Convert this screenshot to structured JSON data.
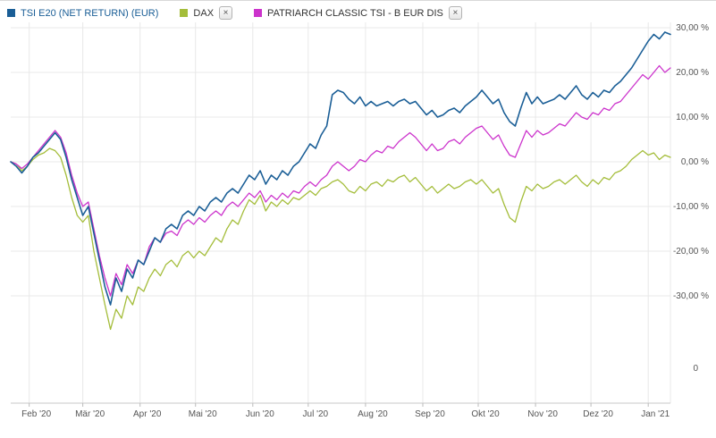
{
  "legend": {
    "items": [
      {
        "label": "TSI E20 (NET RETURN) (EUR)",
        "color": "#1a5e96",
        "text_color": "#1a5e96",
        "closable": false
      },
      {
        "label": "DAX",
        "color": "#a4bd3a",
        "text_color": "#333333",
        "closable": true
      },
      {
        "label": "PATRIARCH CLASSIC TSI - B EUR DIS",
        "color": "#cc33cc",
        "text_color": "#333333",
        "closable": true
      }
    ],
    "close_label": "×"
  },
  "chart_data": {
    "type": "line",
    "title": "",
    "grid": true,
    "legend_position": "top-left",
    "ylim": [
      -40,
      32
    ],
    "point_interval_days": 3,
    "x_total_days": 357,
    "y_ticks": [
      {
        "label": "30,00 %",
        "value": 30,
        "color": "#cc2a2a"
      },
      {
        "label": "20,00 %",
        "value": 20,
        "color": "#555555"
      },
      {
        "label": "10,00 %",
        "value": 10,
        "color": "#555555"
      },
      {
        "label": "0,00 %",
        "value": 0,
        "color": "#555555"
      },
      {
        "label": "-10,00 %",
        "value": -10,
        "color": "#555555"
      },
      {
        "label": "-20,00 %",
        "value": -20,
        "color": "#555555"
      },
      {
        "label": "-30,00 %",
        "value": -30,
        "color": "#555555"
      }
    ],
    "y_axis_lower_label": "0",
    "x_ticks": [
      {
        "label": "Feb '20",
        "day": 10
      },
      {
        "label": "Mär '20",
        "day": 39
      },
      {
        "label": "Apr '20",
        "day": 70
      },
      {
        "label": "Mai '20",
        "day": 100
      },
      {
        "label": "Jun '20",
        "day": 131
      },
      {
        "label": "Jul '20",
        "day": 161
      },
      {
        "label": "Aug '20",
        "day": 192
      },
      {
        "label": "Sep '20",
        "day": 223
      },
      {
        "label": "Okt '20",
        "day": 253
      },
      {
        "label": "Nov '20",
        "day": 284
      },
      {
        "label": "Dez '20",
        "day": 314
      },
      {
        "label": "Jan '21",
        "day": 345
      }
    ],
    "series": [
      {
        "name": "TSI E20 (NET RETURN) (EUR)",
        "color": "#1a5e96",
        "stroke_width": 1.6,
        "values": [
          0,
          -1,
          -2.5,
          -1,
          1,
          2,
          3.5,
          5,
          6.5,
          5,
          1,
          -4,
          -8,
          -12,
          -10,
          -16,
          -22,
          -28,
          -32,
          -26,
          -29,
          -24,
          -26,
          -22,
          -23,
          -20,
          -17,
          -18,
          -15,
          -14,
          -15,
          -12,
          -11,
          -12,
          -10,
          -11,
          -9,
          -8,
          -9,
          -7,
          -6,
          -7,
          -5,
          -3,
          -4,
          -2,
          -5,
          -3,
          -4,
          -2,
          -3,
          -1,
          0,
          2,
          4,
          3,
          6,
          8,
          15,
          16,
          15.5,
          14,
          13,
          14.5,
          12.5,
          13.5,
          12.5,
          13,
          13.5,
          12.5,
          13.5,
          14,
          13,
          13.5,
          12,
          10.5,
          11.5,
          10,
          10.5,
          11.5,
          12,
          11,
          12.5,
          13.5,
          14.5,
          16,
          14.5,
          13,
          14,
          11,
          9,
          8,
          12,
          15.5,
          13,
          14.5,
          13,
          13.5,
          14,
          15,
          14,
          15.5,
          17,
          15,
          14,
          15.5,
          14.5,
          16,
          15.5,
          17,
          18,
          19.5,
          21,
          23,
          25,
          27,
          28.5,
          27.5,
          29,
          28.5
        ]
      },
      {
        "name": "DAX",
        "color": "#a4bd3a",
        "stroke_width": 1.3,
        "values": [
          0,
          -0.5,
          -2,
          -1,
          0.5,
          1.5,
          2,
          3,
          2.5,
          1,
          -3,
          -8,
          -12,
          -13.5,
          -12,
          -20,
          -26,
          -32,
          -37.5,
          -33,
          -35,
          -30,
          -32,
          -28,
          -29,
          -26,
          -24,
          -25.5,
          -23,
          -22,
          -23.5,
          -21,
          -20,
          -21.5,
          -20,
          -21,
          -19,
          -17,
          -18,
          -15,
          -13,
          -14,
          -11,
          -8.5,
          -9.5,
          -7.5,
          -11,
          -9,
          -10,
          -8.5,
          -9.5,
          -8,
          -8.5,
          -7.5,
          -6.5,
          -7.5,
          -6,
          -5.5,
          -4.5,
          -4,
          -5,
          -6.5,
          -7,
          -5.5,
          -6.5,
          -5,
          -4.5,
          -5.5,
          -4,
          -4.5,
          -3.5,
          -3,
          -4.5,
          -3.5,
          -5,
          -6.5,
          -5.5,
          -7,
          -6,
          -5,
          -6,
          -5.5,
          -4.5,
          -4,
          -5,
          -4,
          -5.5,
          -7,
          -6,
          -9.5,
          -12.5,
          -13.5,
          -9,
          -5.5,
          -6.5,
          -5,
          -6,
          -5.5,
          -4.5,
          -4,
          -5,
          -4,
          -3,
          -4.5,
          -5.5,
          -4,
          -5,
          -3.5,
          -4,
          -2.5,
          -2,
          -1,
          0.5,
          1.5,
          2.5,
          1.5,
          2,
          0.5,
          1.5,
          1
        ]
      },
      {
        "name": "PATRIARCH CLASSIC TSI - B EUR DIS",
        "color": "#cc33cc",
        "stroke_width": 1.3,
        "values": [
          0,
          -0.5,
          -1.5,
          -0.5,
          1,
          2.5,
          4,
          5.5,
          7,
          5.5,
          2,
          -3,
          -7,
          -10,
          -9,
          -15,
          -21,
          -26,
          -30,
          -25,
          -27.5,
          -23,
          -25,
          -22,
          -23,
          -19,
          -17,
          -18,
          -16,
          -15.5,
          -16.5,
          -14,
          -13,
          -14,
          -12.5,
          -13.5,
          -12,
          -11,
          -12,
          -10,
          -9,
          -10,
          -8.5,
          -7,
          -8,
          -6.5,
          -9,
          -7.5,
          -8.5,
          -7,
          -8,
          -6.5,
          -7,
          -5.5,
          -4.5,
          -5.5,
          -4,
          -3,
          -1,
          0,
          -1,
          -2,
          -1,
          0.5,
          0,
          1.5,
          2.5,
          2,
          3.5,
          3,
          4.5,
          5.5,
          6.5,
          5.5,
          4,
          2.5,
          4,
          2.5,
          3,
          4.5,
          5,
          4,
          5.5,
          6.5,
          7.5,
          8,
          6.5,
          5,
          6,
          3.5,
          1.5,
          1,
          4,
          7,
          5.5,
          7,
          6,
          6.5,
          7.5,
          8.5,
          8,
          9.5,
          11,
          10,
          9.5,
          11,
          10.5,
          12,
          11.5,
          13,
          13.5,
          15,
          16.5,
          18,
          19.5,
          18.5,
          20,
          21.5,
          20,
          21
        ]
      }
    ]
  }
}
